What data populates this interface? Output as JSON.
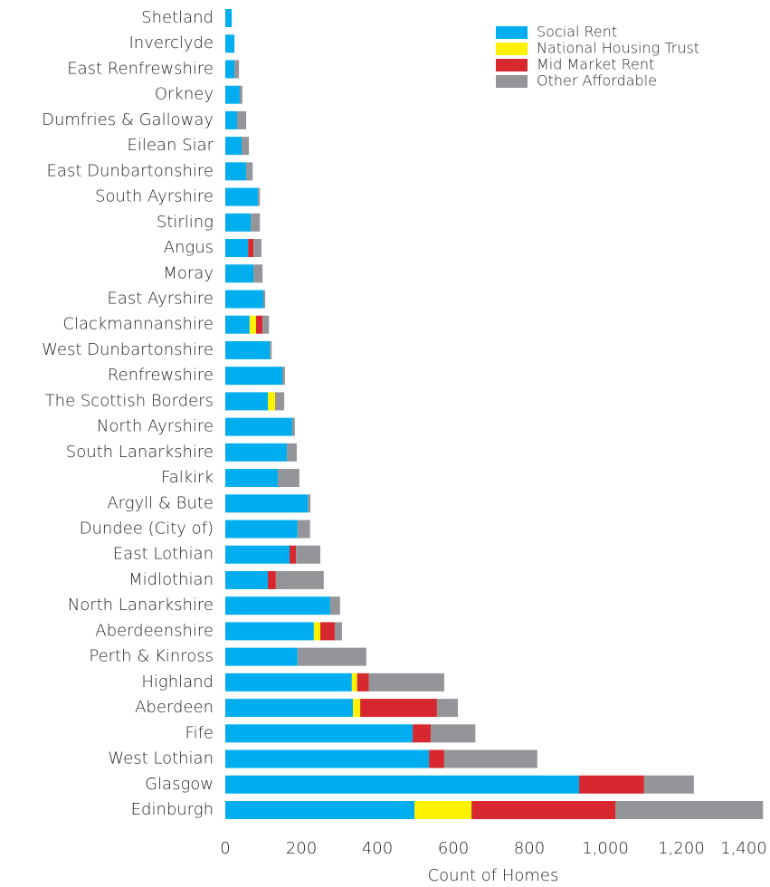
{
  "chart_data": {
    "type": "stacked-barh",
    "categories": [
      "Shetland",
      "Inverclyde",
      "East Renfrewshire",
      "Orkney",
      "Dumfries & Galloway",
      "Eilean Siar",
      "East Dunbartonshire",
      "South Ayrshire",
      "Stirling",
      "Angus",
      "Moray",
      "East Ayrshire",
      "Clackmannanshire",
      "West Dunbartonshire",
      "Renfrewshire",
      "The Scottish Borders",
      "North Ayrshire",
      "South Lanarkshire",
      "Falkirk",
      "Argyll & Bute",
      "Dundee (City of)",
      "East Lothian",
      "Midlothian",
      "North Lanarkshire",
      "Aberdeenshire",
      "Perth & Kinross",
      "Highland",
      "Aberdeen",
      "Fife",
      "West Lothian",
      "Glasgow",
      "Edinburgh"
    ],
    "series": [
      {
        "name": "Social Rent",
        "color": "#00aeef",
        "values": [
          17,
          24,
          24,
          38,
          31,
          43,
          55,
          86,
          67,
          60,
          74,
          100,
          64,
          117,
          150,
          112,
          176,
          162,
          138,
          217,
          190,
          169,
          112,
          276,
          233,
          190,
          333,
          336,
          493,
          536,
          931,
          498
        ]
      },
      {
        "name": "National Housing Trust",
        "color": "#fff200",
        "values": [
          0,
          0,
          0,
          0,
          0,
          0,
          0,
          0,
          0,
          0,
          0,
          0,
          17,
          0,
          0,
          19,
          0,
          0,
          0,
          0,
          0,
          0,
          0,
          0,
          17,
          0,
          14,
          19,
          0,
          0,
          0,
          150
        ]
      },
      {
        "name": "Mid Market Rent",
        "color": "#d7282f",
        "values": [
          0,
          0,
          0,
          0,
          0,
          0,
          0,
          0,
          0,
          14,
          0,
          0,
          17,
          0,
          0,
          0,
          0,
          0,
          0,
          0,
          0,
          17,
          21,
          0,
          38,
          0,
          31,
          202,
          48,
          40,
          171,
          379
        ]
      },
      {
        "name": "Other Affordable",
        "color": "#939598",
        "values": [
          0,
          0,
          12,
          7,
          24,
          19,
          17,
          5,
          24,
          21,
          24,
          5,
          17,
          5,
          7,
          24,
          7,
          26,
          57,
          7,
          33,
          64,
          126,
          26,
          19,
          181,
          198,
          55,
          117,
          245,
          131,
          388
        ]
      }
    ],
    "xlabel": "Count of Homes",
    "xlim": [
      0,
      1400
    ],
    "xticks": [
      0,
      200,
      400,
      600,
      800,
      {
        "value": 1000,
        "label": "1,000"
      },
      {
        "value": 1200,
        "label": "1,200"
      },
      {
        "value": 1400,
        "label": "1,400"
      }
    ],
    "legend": "upper right"
  }
}
